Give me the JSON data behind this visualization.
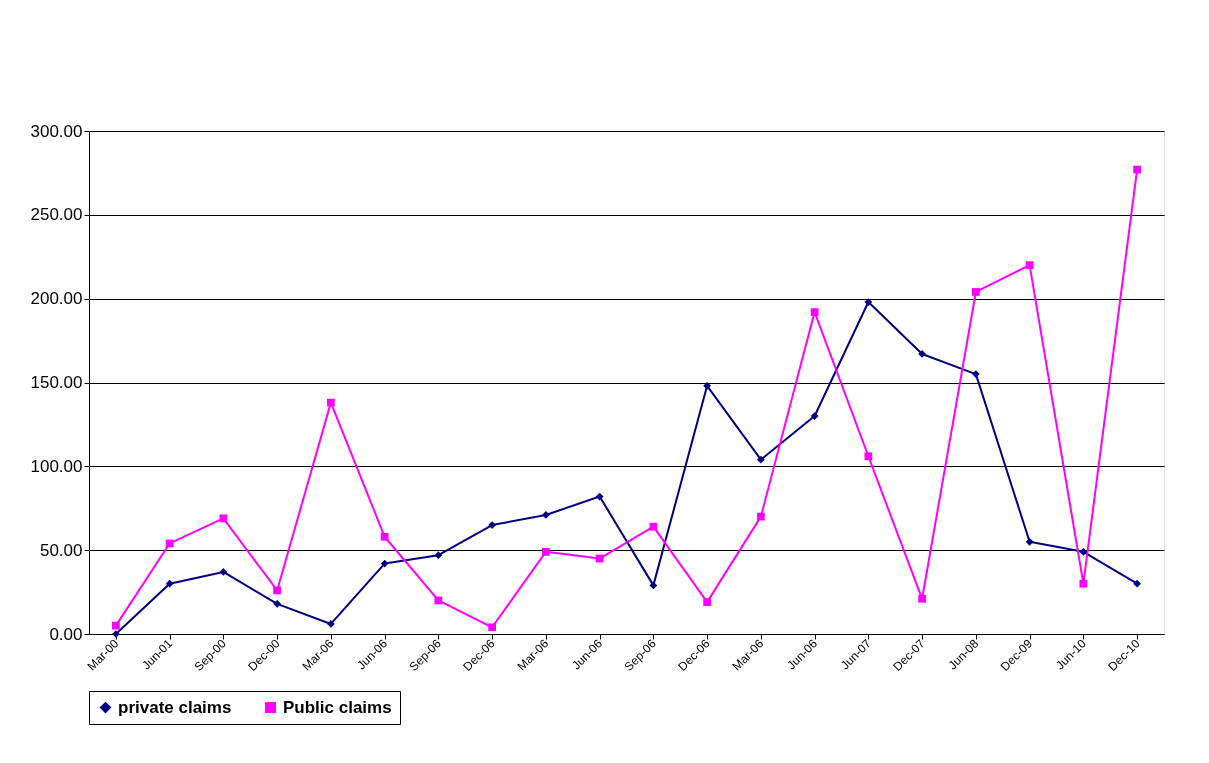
{
  "chart_data": {
    "type": "line",
    "categories": [
      "Mar-00",
      "Jun-01",
      "Sep-00",
      "Dec-00",
      "Mar-06",
      "Jun-06",
      "Sep-06",
      "Dec-06",
      "Mar-06",
      "Jun-06",
      "Sep-06",
      "Dec-06",
      "Mar-06",
      "Jun-06",
      "Jun-07",
      "Dec-07",
      "Jun-08",
      "Dec-09",
      "Jun-10",
      "Dec-10"
    ],
    "series": [
      {
        "name": "private claims",
        "color": "#000080",
        "marker": "diamond",
        "values": [
          0,
          30,
          37,
          18,
          6,
          42,
          47,
          65,
          71,
          82,
          29,
          148,
          104,
          130,
          198,
          167,
          155,
          55,
          49,
          30
        ]
      },
      {
        "name": "Public claims",
        "color": "#ff00ff",
        "marker": "square",
        "values": [
          5,
          54,
          69,
          26,
          138,
          58,
          20,
          4,
          49,
          45,
          64,
          19,
          70,
          192,
          106,
          21,
          204,
          220,
          30,
          277
        ]
      }
    ],
    "ylim": [
      0,
      300
    ],
    "yticks": [
      {
        "value": 0,
        "label": "0.00"
      },
      {
        "value": 50,
        "label": "50.00"
      },
      {
        "value": 100,
        "label": "100.00"
      },
      {
        "value": 150,
        "label": "150.00"
      },
      {
        "value": 200,
        "label": "200.00"
      },
      {
        "value": 250,
        "label": "250.00"
      },
      {
        "value": 300,
        "label": "300.00"
      }
    ],
    "grid": "y",
    "legend": "bottom",
    "line_style": "solid"
  }
}
